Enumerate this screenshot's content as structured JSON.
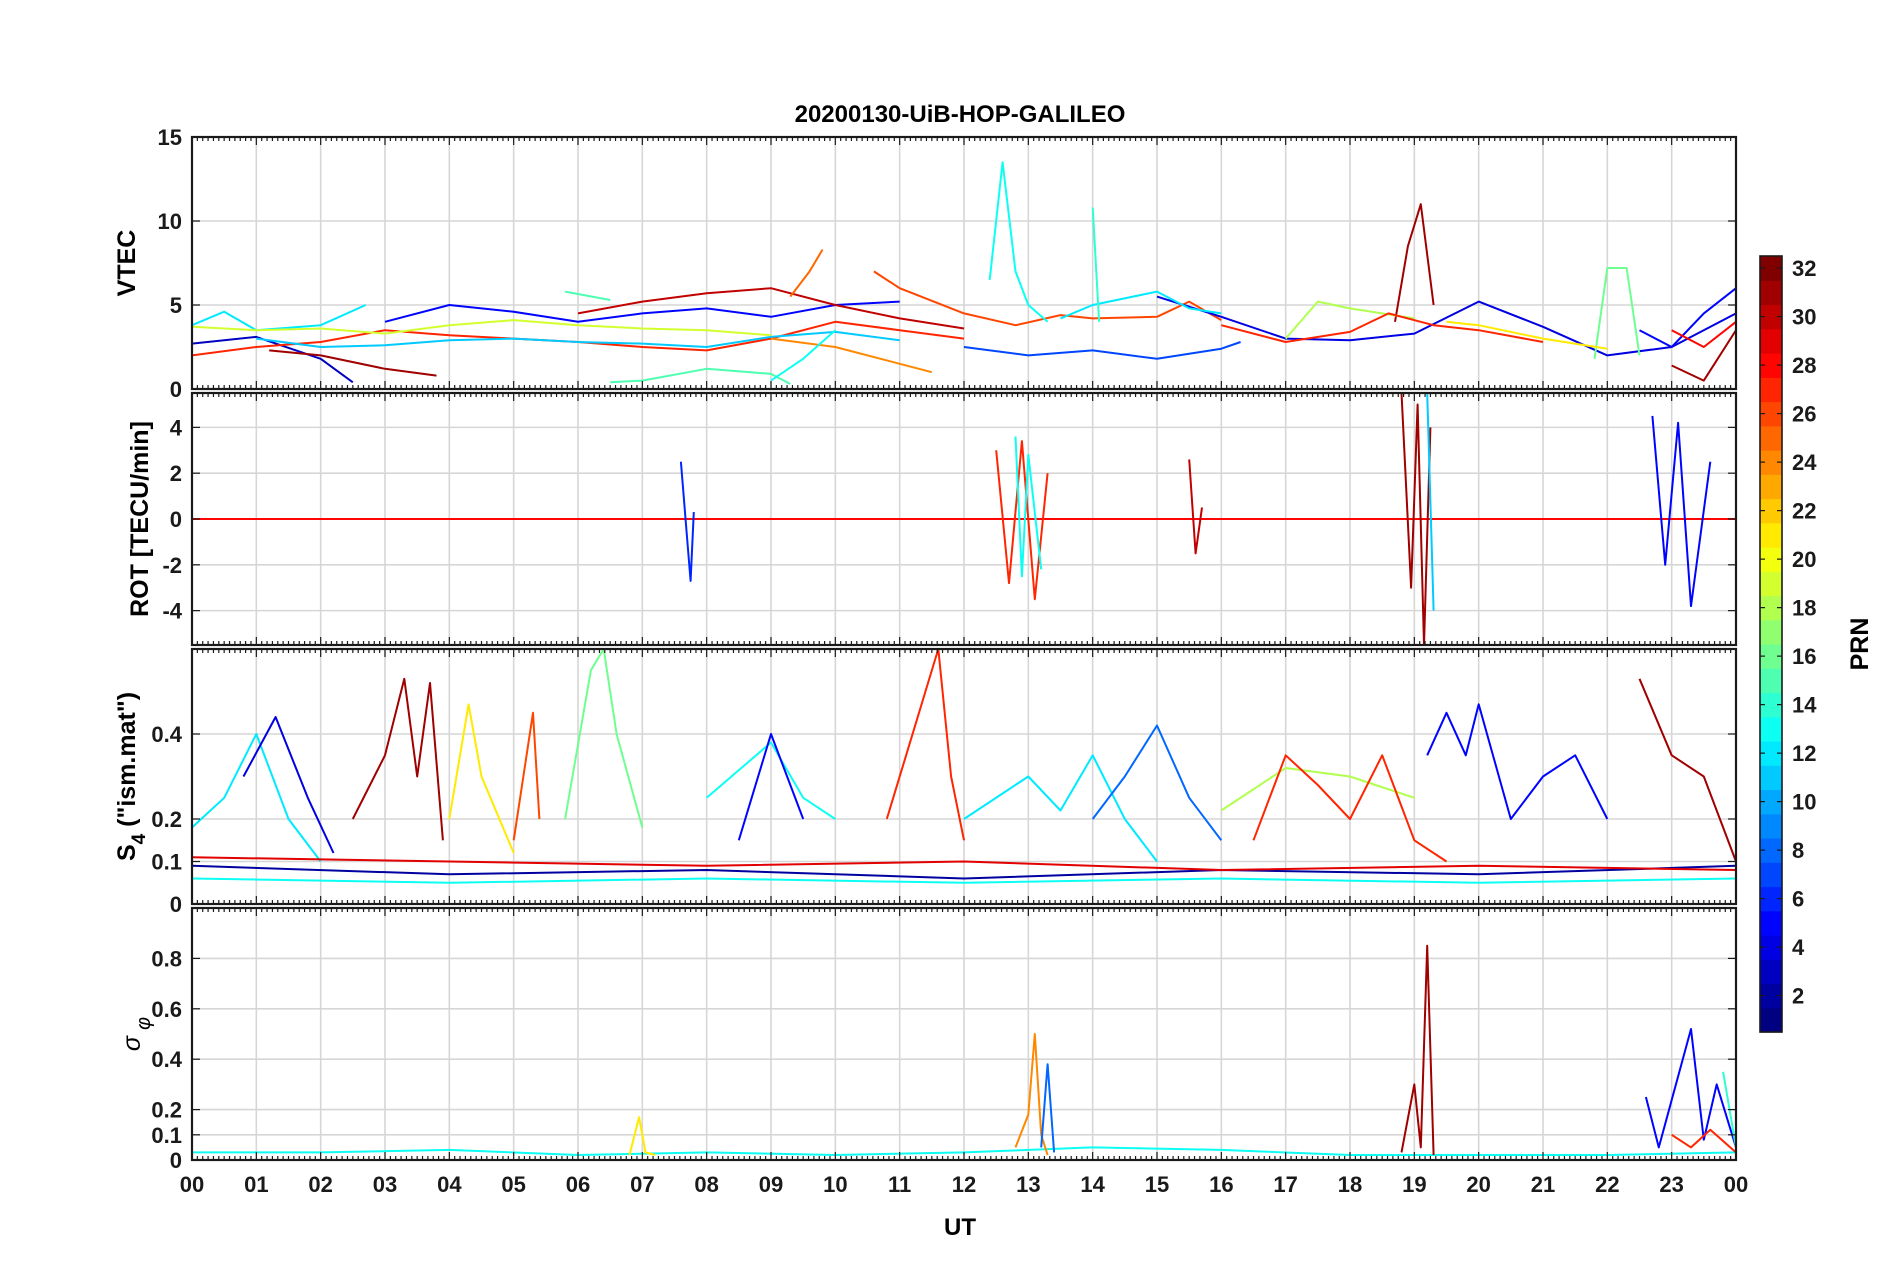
{
  "figure": {
    "title": "20200130-UiB-HOP-GALILEO",
    "xlabel": "UT",
    "x_ticks": [
      "00",
      "01",
      "02",
      "03",
      "04",
      "05",
      "06",
      "07",
      "08",
      "09",
      "10",
      "11",
      "12",
      "13",
      "14",
      "15",
      "16",
      "17",
      "18",
      "19",
      "20",
      "21",
      "22",
      "23",
      "00"
    ]
  },
  "colorbar": {
    "label": "PRN",
    "range": [
      1,
      32
    ],
    "ticks": [
      2,
      4,
      6,
      8,
      10,
      12,
      14,
      16,
      18,
      20,
      22,
      24,
      26,
      28,
      30,
      32
    ],
    "colormap": "jet",
    "colors": [
      "#00008f",
      "#0000ff",
      "#00ffff",
      "#ffff00",
      "#ff0000",
      "#800000"
    ]
  },
  "chart_data": [
    {
      "type": "line",
      "panel": "VTEC",
      "ylabel": "VTEC",
      "xlim": [
        0,
        24
      ],
      "ylim": [
        0,
        15
      ],
      "yticks": [
        0,
        5,
        10,
        15
      ],
      "grid": true,
      "series": [
        {
          "prn": 12,
          "x": [
            0,
            0.5,
            1,
            2,
            2.7
          ],
          "y": [
            3.8,
            4.6,
            3.5,
            3.8,
            5.0
          ]
        },
        {
          "prn": 3,
          "x": [
            0,
            1,
            2,
            2.5
          ],
          "y": [
            2.7,
            3.1,
            1.8,
            0.4
          ]
        },
        {
          "prn": 31,
          "x": [
            1.2,
            2,
            3,
            3.8
          ],
          "y": [
            2.3,
            2.0,
            1.2,
            0.8
          ]
        },
        {
          "prn": 27,
          "x": [
            0,
            1,
            2,
            3,
            4,
            5,
            6,
            7,
            8,
            9,
            10,
            11,
            12
          ],
          "y": [
            2.0,
            2.5,
            2.8,
            3.5,
            3.2,
            3.0,
            2.8,
            2.5,
            2.3,
            3.0,
            4.0,
            3.5,
            3.0
          ]
        },
        {
          "prn": 5,
          "x": [
            3,
            4,
            5,
            6,
            7,
            8,
            9,
            10,
            11
          ],
          "y": [
            4.0,
            5.0,
            4.6,
            4.0,
            4.5,
            4.8,
            4.3,
            5.0,
            5.2
          ]
        },
        {
          "prn": 19,
          "x": [
            0,
            1,
            2,
            3,
            4,
            5,
            6,
            7,
            8,
            9
          ],
          "y": [
            3.7,
            3.5,
            3.6,
            3.3,
            3.8,
            4.1,
            3.8,
            3.6,
            3.5,
            3.2
          ]
        },
        {
          "prn": 11,
          "x": [
            1,
            2,
            3,
            4,
            5,
            6,
            7,
            8,
            9,
            10,
            11
          ],
          "y": [
            3.0,
            2.5,
            2.6,
            2.9,
            3.0,
            2.8,
            2.7,
            2.5,
            3.1,
            3.4,
            2.9
          ]
        },
        {
          "prn": 30,
          "x": [
            6,
            7,
            8,
            9,
            10,
            11,
            12
          ],
          "y": [
            4.5,
            5.2,
            5.7,
            6.0,
            5.0,
            4.2,
            3.6
          ]
        },
        {
          "prn": 25,
          "x": [
            9.3,
            9.6,
            9.8
          ],
          "y": [
            5.5,
            7.0,
            8.3
          ]
        },
        {
          "prn": 26,
          "x": [
            10.6,
            11,
            12,
            12.8,
            13.5,
            14,
            15,
            15.5,
            16
          ],
          "y": [
            7.0,
            6.0,
            4.5,
            3.8,
            4.4,
            4.2,
            4.3,
            5.2,
            4.1
          ]
        },
        {
          "prn": 24,
          "x": [
            9,
            10,
            11,
            11.5
          ],
          "y": [
            3.0,
            2.5,
            1.5,
            1.0
          ]
        },
        {
          "prn": 13,
          "x": [
            12.4,
            12.6,
            12.8,
            13,
            13.3
          ],
          "y": [
            6.5,
            13.5,
            7.0,
            5.0,
            4.0
          ]
        },
        {
          "prn": 7,
          "x": [
            12,
            13,
            14,
            15,
            16,
            16.3
          ],
          "y": [
            2.5,
            2.0,
            2.3,
            1.8,
            2.4,
            2.8
          ]
        },
        {
          "prn": 4,
          "x": [
            15,
            16,
            17,
            18,
            19,
            20,
            21,
            22,
            23,
            24
          ],
          "y": [
            5.5,
            4.3,
            3.0,
            2.9,
            3.3,
            5.2,
            3.7,
            2.0,
            2.5,
            4.5
          ]
        },
        {
          "prn": 12,
          "x": [
            13.5,
            14,
            15,
            15.5,
            16
          ],
          "y": [
            4.2,
            5.0,
            5.8,
            4.8,
            4.5
          ]
        },
        {
          "prn": 14,
          "x": [
            14,
            14.1
          ],
          "y": [
            10.8,
            4.0
          ]
        },
        {
          "prn": 31,
          "x": [
            18.7,
            18.9,
            19.1,
            19.3
          ],
          "y": [
            4.0,
            8.5,
            11.0,
            5.0
          ]
        },
        {
          "prn": 18,
          "x": [
            17,
            17.5,
            18,
            19
          ],
          "y": [
            3.0,
            5.2,
            4.8,
            4.2
          ]
        },
        {
          "prn": 27,
          "x": [
            16,
            17,
            18,
            18.6,
            19.3,
            20,
            21
          ],
          "y": [
            3.8,
            2.8,
            3.4,
            4.5,
            3.8,
            3.5,
            2.8
          ]
        },
        {
          "prn": 16,
          "x": [
            21.8,
            22,
            22.3,
            22.5
          ],
          "y": [
            1.8,
            7.2,
            7.2,
            2.0
          ]
        },
        {
          "prn": 21,
          "x": [
            19.5,
            20,
            21,
            22
          ],
          "y": [
            4.0,
            3.8,
            3.0,
            2.4
          ]
        },
        {
          "prn": 5,
          "x": [
            22.5,
            23,
            23.5,
            24
          ],
          "y": [
            3.5,
            2.5,
            4.5,
            6.0
          ]
        },
        {
          "prn": 31,
          "x": [
            23,
            23.5,
            24
          ],
          "y": [
            1.4,
            0.5,
            3.5
          ]
        },
        {
          "prn": 28,
          "x": [
            23,
            23.5,
            24
          ],
          "y": [
            3.5,
            2.5,
            4.0
          ]
        },
        {
          "prn": 15,
          "x": [
            6.5,
            7,
            8,
            9,
            9.3
          ],
          "y": [
            0.4,
            0.5,
            1.2,
            0.9,
            0.3
          ]
        },
        {
          "prn": 13,
          "x": [
            9,
            9.5,
            10
          ],
          "y": [
            0.5,
            1.8,
            3.5
          ]
        },
        {
          "prn": 15,
          "x": [
            5.8,
            6.5
          ],
          "y": [
            5.8,
            5.3
          ]
        }
      ]
    },
    {
      "type": "line",
      "panel": "ROT",
      "ylabel": "ROT [TECU/min]",
      "xlim": [
        0,
        24
      ],
      "ylim": [
        -5.5,
        5.5
      ],
      "yticks": [
        -4,
        -2,
        0,
        2,
        4
      ],
      "grid": true,
      "series": [
        {
          "prn": 28,
          "x": [
            0,
            2,
            4,
            6,
            8,
            10,
            12,
            14,
            16,
            18,
            20,
            22,
            24
          ],
          "y": [
            0,
            0,
            0,
            0,
            0,
            0,
            0,
            0,
            0,
            0,
            0,
            0,
            0
          ]
        },
        {
          "prn": 6,
          "x": [
            7.6,
            7.7,
            7.75,
            7.8
          ],
          "y": [
            2.5,
            -1.0,
            -2.7,
            0.3
          ]
        },
        {
          "prn": 27,
          "x": [
            12.5,
            12.7,
            12.9,
            13.1,
            13.3
          ],
          "y": [
            3.0,
            -2.8,
            3.4,
            -3.5,
            2.0
          ]
        },
        {
          "prn": 13,
          "x": [
            12.8,
            12.9,
            13,
            13.2
          ],
          "y": [
            3.6,
            -2.5,
            2.8,
            -2.2
          ]
        },
        {
          "prn": 31,
          "x": [
            18.8,
            18.95,
            19.05,
            19.15,
            19.25
          ],
          "y": [
            5.5,
            -3.0,
            5.0,
            -5.5,
            4.0
          ]
        },
        {
          "prn": 11,
          "x": [
            19.2,
            19.3
          ],
          "y": [
            5.5,
            -4.0
          ]
        },
        {
          "prn": 5,
          "x": [
            22.7,
            22.9,
            23.1,
            23.3,
            23.6
          ],
          "y": [
            4.5,
            -2.0,
            4.2,
            -3.8,
            2.5
          ]
        },
        {
          "prn": 30,
          "x": [
            15.5,
            15.6,
            15.7
          ],
          "y": [
            2.6,
            -1.5,
            0.5
          ]
        }
      ]
    },
    {
      "type": "line",
      "panel": "S4",
      "ylabel": "S4 (\"ism.mat\")",
      "xlim": [
        0,
        24
      ],
      "ylim": [
        0,
        0.6
      ],
      "yticks": [
        0,
        0.1,
        0.2,
        0.4
      ],
      "ytick_labels": [
        "0",
        "0.1",
        "0.2",
        "0.4"
      ],
      "grid": true,
      "series": [
        {
          "prn": 12,
          "x": [
            0,
            0.5,
            1,
            1.5,
            2
          ],
          "y": [
            0.18,
            0.25,
            0.4,
            0.2,
            0.1
          ]
        },
        {
          "prn": 4,
          "x": [
            0.8,
            1.3,
            1.8,
            2.2
          ],
          "y": [
            0.3,
            0.44,
            0.25,
            0.12
          ]
        },
        {
          "prn": 31,
          "x": [
            2.5,
            3,
            3.3,
            3.5,
            3.7,
            3.9
          ],
          "y": [
            0.2,
            0.35,
            0.53,
            0.3,
            0.52,
            0.15
          ]
        },
        {
          "prn": 21,
          "x": [
            4,
            4.3,
            4.5,
            5
          ],
          "y": [
            0.2,
            0.47,
            0.3,
            0.12
          ]
        },
        {
          "prn": 26,
          "x": [
            5,
            5.3,
            5.4
          ],
          "y": [
            0.15,
            0.45,
            0.2
          ]
        },
        {
          "prn": 16,
          "x": [
            5.8,
            6.2,
            6.4,
            6.6,
            7
          ],
          "y": [
            0.2,
            0.55,
            0.6,
            0.4,
            0.18
          ]
        },
        {
          "prn": 13,
          "x": [
            8,
            9,
            9.5,
            10
          ],
          "y": [
            0.25,
            0.38,
            0.25,
            0.2
          ]
        },
        {
          "prn": 5,
          "x": [
            8.5,
            9,
            9.5
          ],
          "y": [
            0.15,
            0.4,
            0.2
          ]
        },
        {
          "prn": 27,
          "x": [
            10.8,
            11.3,
            11.6,
            11.8,
            12
          ],
          "y": [
            0.2,
            0.45,
            0.6,
            0.3,
            0.15
          ]
        },
        {
          "prn": 12,
          "x": [
            12,
            13,
            13.5,
            14,
            14.5,
            15
          ],
          "y": [
            0.2,
            0.3,
            0.22,
            0.35,
            0.2,
            0.1
          ]
        },
        {
          "prn": 8,
          "x": [
            14,
            14.5,
            15,
            15.5,
            16
          ],
          "y": [
            0.2,
            0.3,
            0.42,
            0.25,
            0.15
          ]
        },
        {
          "prn": 18,
          "x": [
            16,
            17,
            18,
            19
          ],
          "y": [
            0.22,
            0.32,
            0.3,
            0.25
          ]
        },
        {
          "prn": 27,
          "x": [
            16.5,
            17,
            17.5,
            18,
            18.5,
            19,
            19.5
          ],
          "y": [
            0.15,
            0.35,
            0.28,
            0.2,
            0.35,
            0.15,
            0.1
          ]
        },
        {
          "prn": 5,
          "x": [
            19.2,
            19.5,
            19.8,
            20,
            20.5,
            21,
            21.5,
            22
          ],
          "y": [
            0.35,
            0.45,
            0.35,
            0.47,
            0.2,
            0.3,
            0.35,
            0.2
          ]
        },
        {
          "prn": 31,
          "x": [
            22.5,
            23,
            23.5,
            24
          ],
          "y": [
            0.53,
            0.35,
            0.3,
            0.1
          ]
        },
        {
          "prn": 13,
          "x": [
            0,
            4,
            8,
            12,
            16,
            20,
            24
          ],
          "y": [
            0.06,
            0.05,
            0.06,
            0.05,
            0.06,
            0.05,
            0.06
          ]
        },
        {
          "prn": 2,
          "x": [
            0,
            4,
            8,
            12,
            16,
            20,
            24
          ],
          "y": [
            0.09,
            0.07,
            0.08,
            0.06,
            0.08,
            0.07,
            0.09
          ]
        },
        {
          "prn": 29,
          "x": [
            0,
            4,
            8,
            12,
            16,
            20,
            24
          ],
          "y": [
            0.11,
            0.1,
            0.09,
            0.1,
            0.08,
            0.09,
            0.08
          ]
        }
      ]
    },
    {
      "type": "line",
      "panel": "sigma_phi",
      "ylabel": "σφ",
      "xlim": [
        0,
        24
      ],
      "ylim": [
        0,
        1.0
      ],
      "yticks": [
        0,
        0.1,
        0.2,
        0.4,
        0.6,
        0.8
      ],
      "ytick_labels": [
        "0",
        "0.1",
        "0.2",
        "0.4",
        "0.6",
        "0.8"
      ],
      "grid": true,
      "series": [
        {
          "prn": 13,
          "x": [
            0,
            2,
            4,
            6,
            8,
            10,
            12,
            14,
            16,
            18,
            20,
            22,
            24
          ],
          "y": [
            0.03,
            0.03,
            0.04,
            0.02,
            0.03,
            0.02,
            0.03,
            0.05,
            0.04,
            0.02,
            0.02,
            0.02,
            0.03
          ]
        },
        {
          "prn": 21,
          "x": [
            6.8,
            6.95,
            7.05,
            7.2
          ],
          "y": [
            0.02,
            0.17,
            0.03,
            0.02
          ]
        },
        {
          "prn": 24,
          "x": [
            12.8,
            13,
            13.1,
            13.2,
            13.3
          ],
          "y": [
            0.05,
            0.18,
            0.5,
            0.1,
            0.02
          ]
        },
        {
          "prn": 8,
          "x": [
            13.2,
            13.3,
            13.4
          ],
          "y": [
            0.05,
            0.38,
            0.03
          ]
        },
        {
          "prn": 31,
          "x": [
            18.8,
            19,
            19.1,
            19.2,
            19.3
          ],
          "y": [
            0.03,
            0.3,
            0.05,
            0.85,
            0.02
          ]
        },
        {
          "prn": 5,
          "x": [
            22.6,
            22.8,
            23.3,
            23.5,
            23.7,
            24
          ],
          "y": [
            0.25,
            0.05,
            0.52,
            0.08,
            0.3,
            0.05
          ]
        },
        {
          "prn": 27,
          "x": [
            23,
            23.3,
            23.6,
            24
          ],
          "y": [
            0.1,
            0.05,
            0.12,
            0.03
          ]
        },
        {
          "prn": 14,
          "x": [
            23.8,
            24
          ],
          "y": [
            0.35,
            0.05
          ]
        }
      ]
    }
  ]
}
